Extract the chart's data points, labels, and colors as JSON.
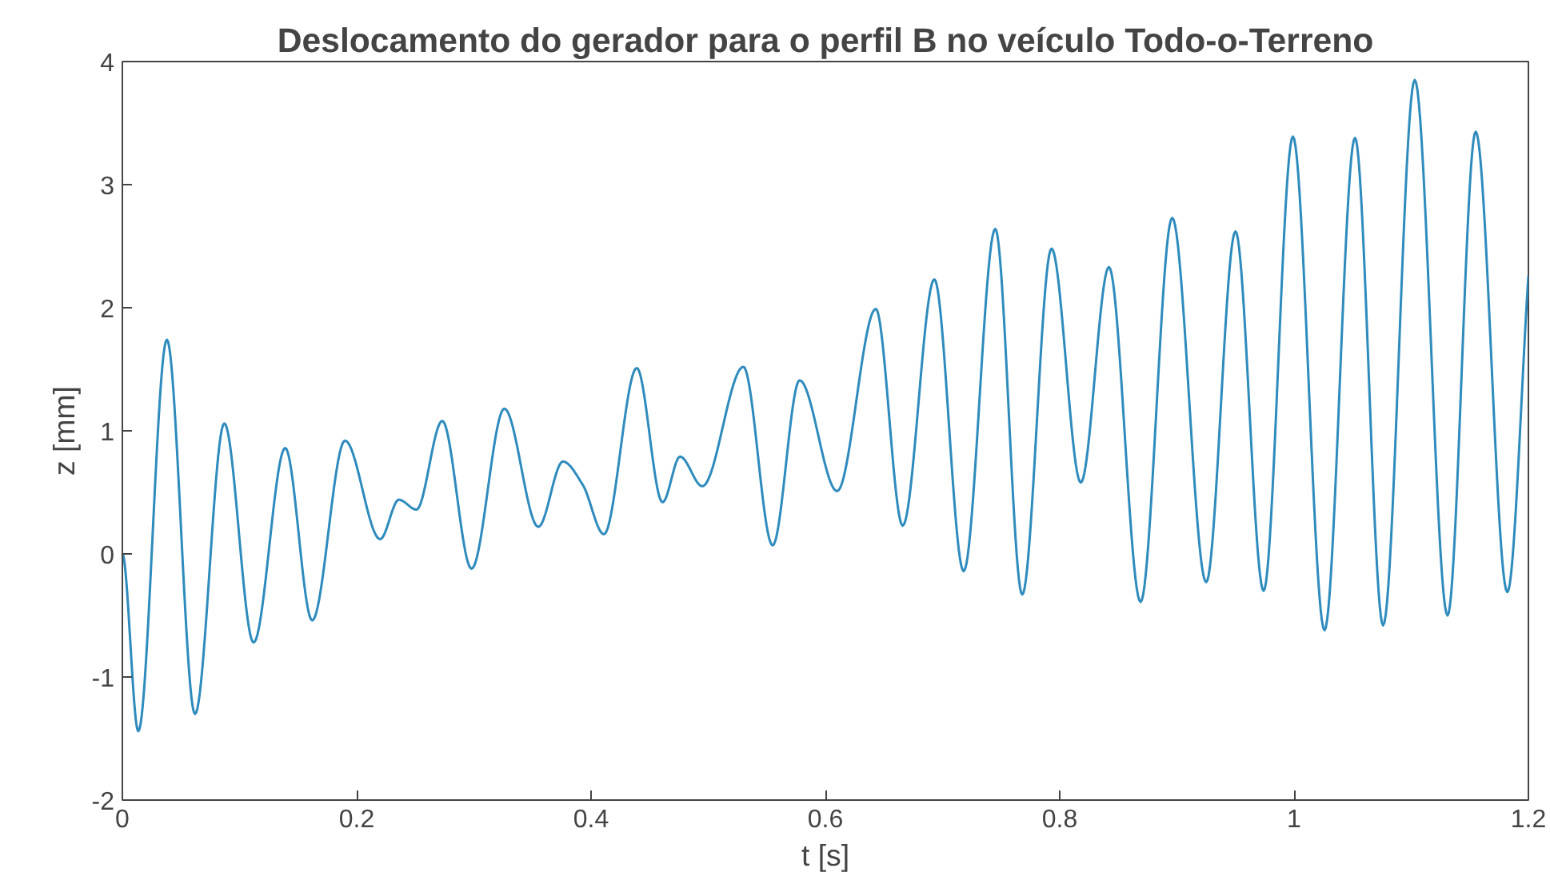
{
  "chart_data": {
    "type": "line",
    "title": "Deslocamento do gerador para o perfil B no veículo Todo-o-Terreno",
    "xlabel": "t [s]",
    "ylabel": "z [mm]",
    "x": [
      0,
      0.0136,
      0.038,
      0.062,
      0.087,
      0.112,
      0.139,
      0.162,
      0.19,
      0.22,
      0.236,
      0.251,
      0.273,
      0.298,
      0.326,
      0.355,
      0.376,
      0.393,
      0.411,
      0.439,
      0.461,
      0.476,
      0.495,
      0.53,
      0.555,
      0.578,
      0.61,
      0.643,
      0.666,
      0.693,
      0.718,
      0.745,
      0.768,
      0.793,
      0.818,
      0.842,
      0.869,
      0.896,
      0.925,
      0.95,
      0.974,
      0.999,
      1.026,
      1.052,
      1.076,
      1.103,
      1.131,
      1.155,
      1.182,
      1.2
    ],
    "series": [
      {
        "color": "#2e8bbd",
        "values": [
          0,
          -1.44,
          1.74,
          -1.3,
          1.06,
          -0.72,
          0.86,
          -0.54,
          0.92,
          0.12,
          0.44,
          0.36,
          1.08,
          -0.12,
          1.18,
          0.22,
          0.75,
          0.56,
          0.16,
          1.51,
          0.42,
          0.79,
          0.55,
          1.52,
          0.07,
          1.41,
          0.51,
          1.99,
          0.23,
          2.23,
          -0.14,
          2.64,
          -0.33,
          2.48,
          0.58,
          2.33,
          -0.39,
          2.73,
          -0.23,
          2.62,
          -0.3,
          3.39,
          -0.62,
          3.38,
          -0.58,
          3.85,
          -0.5,
          3.43,
          -0.31,
          2.26
        ]
      }
    ],
    "xlim": [
      0,
      1.2
    ],
    "ylim": [
      -2,
      4
    ],
    "xticks": [
      0,
      0.2,
      0.4,
      0.6,
      0.8,
      {
        "value": 1,
        "label": "1"
      },
      1.2
    ],
    "yticks": [
      -2,
      -1,
      0,
      1,
      2,
      3,
      4
    ],
    "grid": false,
    "marker": "none",
    "line_style": "solid"
  }
}
